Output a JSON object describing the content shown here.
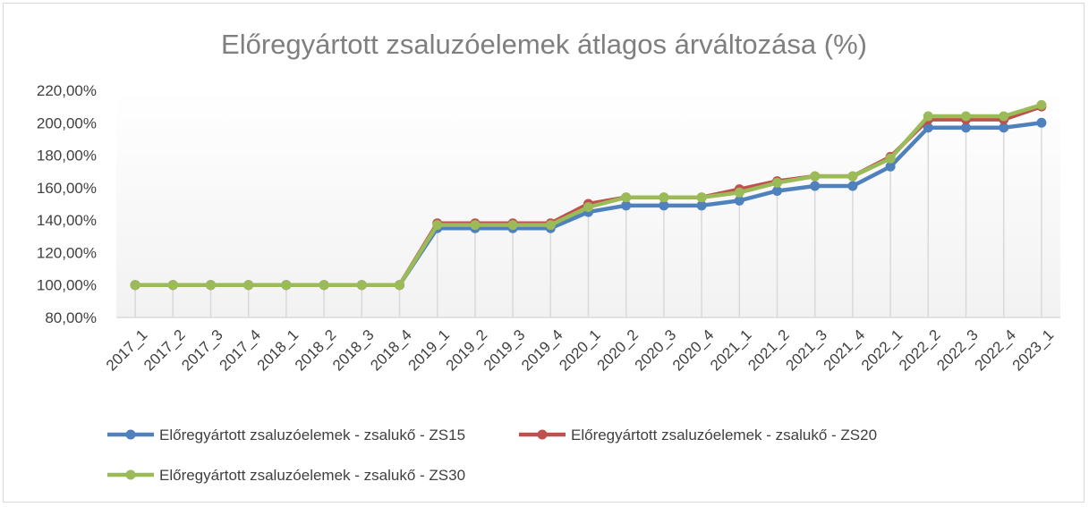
{
  "chart_data": {
    "type": "line",
    "title": "Előregyártott zsaluzóelemek átlagos árváltozása (%)",
    "xlabel": "",
    "ylabel": "",
    "ylim": [
      80,
      220
    ],
    "yticks": [
      "80,00%",
      "100,00%",
      "120,00%",
      "140,00%",
      "160,00%",
      "180,00%",
      "200,00%",
      "220,00%"
    ],
    "ytick_values": [
      80,
      100,
      120,
      140,
      160,
      180,
      200,
      220
    ],
    "grid": "vertical",
    "legend_position": "bottom",
    "categories": [
      "2017_1",
      "2017_2",
      "2017_3",
      "2017_4",
      "2018_1",
      "2018_2",
      "2018_3",
      "2018_4",
      "2019_1",
      "2019_2",
      "2019_3",
      "2019_4",
      "2020_1",
      "2020_2",
      "2020_3",
      "2020_4",
      "2021_1",
      "2021_2",
      "2021_3",
      "2021_4",
      "2022_1",
      "2022_2",
      "2022_3",
      "2022_4",
      "2023_1"
    ],
    "series": [
      {
        "name": "Előregyártott zsaluzóelemek - zsalukő - ZS15",
        "color": "#4f81bd",
        "values": [
          100,
          100,
          100,
          100,
          100,
          100,
          100,
          100,
          135,
          135,
          135,
          135,
          145,
          149,
          149,
          149,
          152,
          158,
          161,
          161,
          173,
          197,
          197,
          197,
          200
        ]
      },
      {
        "name": "Előregyártott zsaluzóelemek - zsalukő - ZS20",
        "color": "#c0504d",
        "values": [
          100,
          100,
          100,
          100,
          100,
          100,
          100,
          100,
          138,
          138,
          138,
          138,
          150,
          154,
          154,
          154,
          159,
          164,
          167,
          167,
          179,
          202,
          202,
          202,
          210
        ]
      },
      {
        "name": "Előregyártott zsaluzóelemek - zsalukő - ZS30",
        "color": "#9bbb59",
        "values": [
          100,
          100,
          100,
          100,
          100,
          100,
          100,
          100,
          137,
          137,
          137,
          137,
          148,
          154,
          154,
          154,
          157,
          163,
          167,
          167,
          178,
          204,
          204,
          204,
          211
        ]
      }
    ]
  }
}
